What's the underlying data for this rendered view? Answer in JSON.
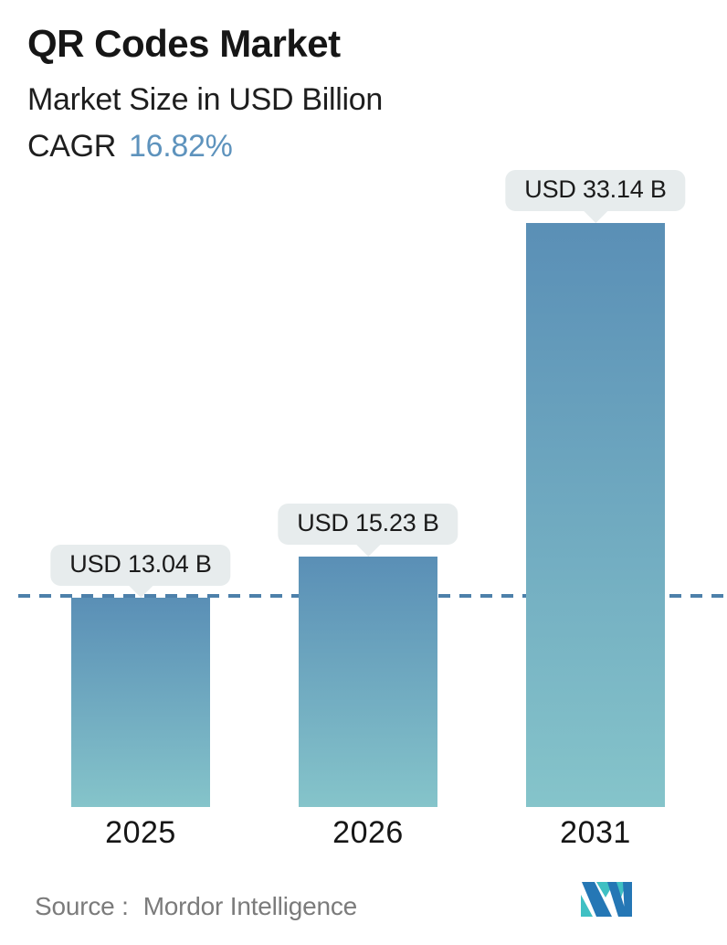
{
  "header": {
    "title": "QR Codes Market",
    "subtitle": "Market Size in USD Billion",
    "cagr_label": "CAGR",
    "cagr_value": "16.82%"
  },
  "chart_data": {
    "type": "bar",
    "title": "QR Codes Market",
    "subtitle": "Market Size in USD Billion",
    "cagr_percent": 16.82,
    "unit": "USD Billion",
    "categories": [
      "2025",
      "2026",
      "2031"
    ],
    "values": [
      13.04,
      15.23,
      33.14
    ],
    "bar_labels": [
      "USD 13.04 B",
      "USD 15.23 B",
      "USD 33.14 B"
    ],
    "reference_line": {
      "value": 13.04,
      "style": "dashed"
    },
    "legend": "none",
    "grid": "off",
    "colors": {
      "bar_gradient_top": "#5a8fb6",
      "bar_gradient_bottom": "#85c4ca",
      "dashed_line": "#4d80aa",
      "label_pill_bg": "#e7eced",
      "cagr_accent": "#5e93bd",
      "title_text": "#161616",
      "source_text": "#7b7b7b"
    }
  },
  "footer": {
    "source_label": "Source :",
    "source_value": "Mordor Intelligence",
    "logo": "mordor-intelligence-logo",
    "logo_colors": {
      "teal": "#3fc0c3",
      "blue": "#2577b5"
    }
  }
}
